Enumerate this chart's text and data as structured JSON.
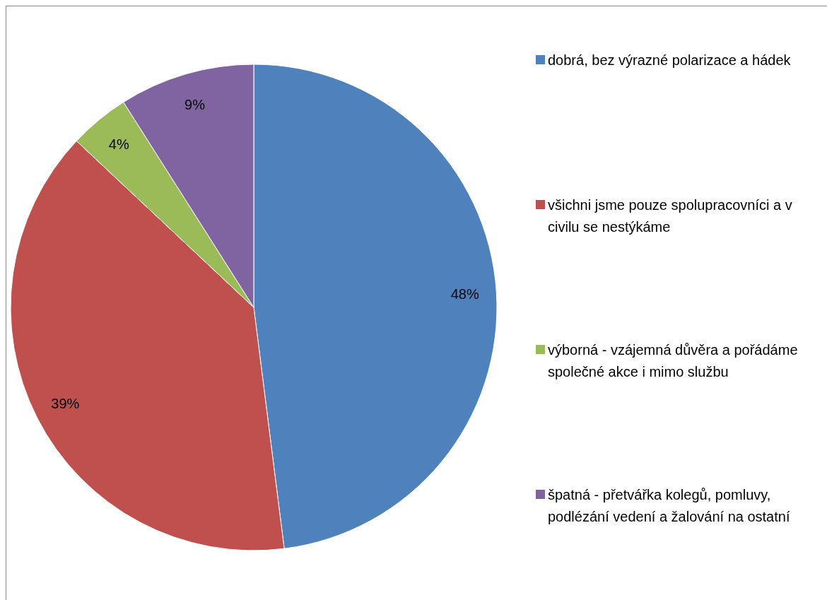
{
  "chart_data": {
    "type": "pie",
    "categories": [
      "dobrá, bez výrazné polarizace a hádek",
      "všichni jsme pouze spolupracovníci a v civilu se nestýkáme",
      "výborná - vzájemná důvěra a pořádáme společné akce i mimo službu",
      "špatná - přetvářka kolegů, pomluvy, podlézání vedení a žalování na ostatní"
    ],
    "values": [
      48,
      39,
      4,
      9
    ],
    "colors": [
      "#4f81bd",
      "#c0504d",
      "#9bbb59",
      "#8064a2"
    ],
    "value_labels": [
      "48%",
      "39%",
      "4%",
      "9%"
    ],
    "legend": "right"
  }
}
